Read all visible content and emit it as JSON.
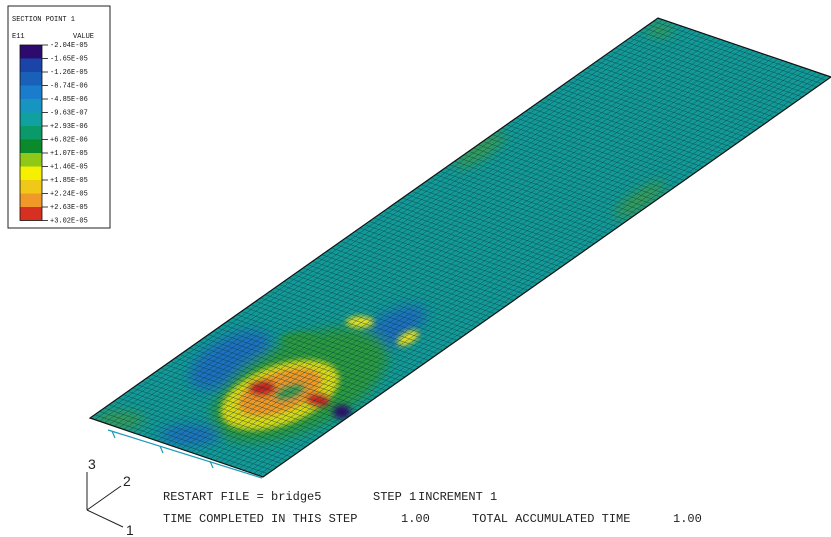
{
  "legend": {
    "title": "SECTION POINT 1",
    "variable": "E11",
    "column": "VALUE",
    "labels": [
      "-2.04E-05",
      "-1.65E-05",
      "-1.26E-05",
      "-8.74E-06",
      "-4.85E-06",
      "-9.63E-07",
      "+2.93E-06",
      "+6.82E-06",
      "+1.07E-05",
      "+1.46E-05",
      "+1.85E-05",
      "+2.24E-05",
      "+2.63E-05",
      "+3.02E-05"
    ],
    "colors": [
      "#2d0a6e",
      "#1a44a8",
      "#1860b8",
      "#1a7ccc",
      "#1894c0",
      "#10a0a0",
      "#0a9a6a",
      "#0a8a2a",
      "#90c818",
      "#f4f000",
      "#f0c818",
      "#f09828",
      "#d83020"
    ]
  },
  "status": {
    "line1": [
      "RESTART FILE = bridge5",
      "STEP 1",
      "INCREMENT 1"
    ],
    "line2": [
      "TIME COMPLETED IN THIS STEP",
      "1.00",
      "TOTAL ACCUMULATED TIME",
      "1.00"
    ]
  },
  "triad": [
    "3",
    "2",
    "1"
  ]
}
